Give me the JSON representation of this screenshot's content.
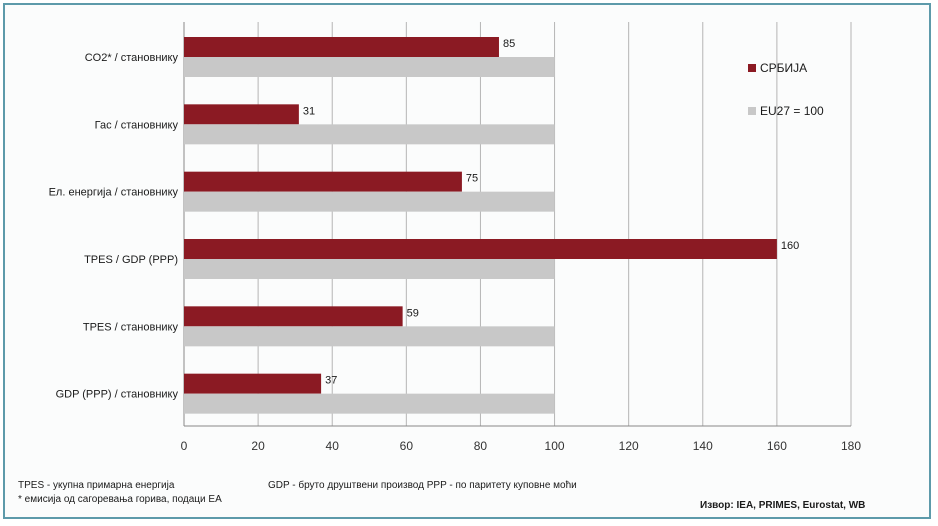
{
  "chart_data": {
    "type": "bar",
    "orientation": "horizontal",
    "categories": [
      "CO2* / становнику",
      "Гас / становнику",
      "Ел. енергија / становнику",
      "TPES / GDP (PPP)",
      "TPES / становнику",
      "GDP (PPP) / становнику"
    ],
    "series": [
      {
        "name": "СРБИЈА",
        "values": [
          85,
          31,
          75,
          160,
          59,
          37
        ],
        "color": "#8b1a23",
        "show_labels": true
      },
      {
        "name": "EU27 = 100",
        "values": [
          100,
          100,
          100,
          100,
          100,
          100
        ],
        "color": "#c8c8c8",
        "show_labels": false
      }
    ],
    "xlim": [
      0,
      180
    ],
    "xticks": [
      "0",
      "20",
      "40",
      "60",
      "80",
      "100",
      "120",
      "140",
      "160",
      "180"
    ],
    "grid": true,
    "legend_position": "top-right"
  },
  "footnotes": {
    "line1_a": "TPES -  укупна примарна енергија",
    "line1_b": "GDP -  бруто друштвени производ   PPP -  по паритету куповне моћи",
    "line2": "* емисија од сагоревања горива, подаци ЕА",
    "source": "Извор: IEA, PRIMES, Eurostat, WB"
  }
}
